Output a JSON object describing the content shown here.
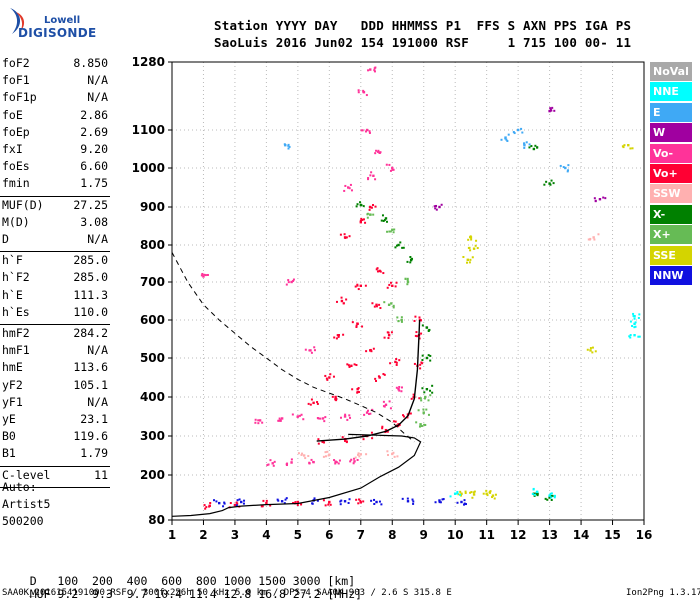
{
  "logo": {
    "line1": "Lowell",
    "line2": "DIGISONDE"
  },
  "header": {
    "line1": "Station YYYY DAY   DDD HHMMSS P1  FFS S AXN PPS IGA PS",
    "line2": "SaoLuis 2016 Jun02 154 191000 RSF     1 715 100 00- 11"
  },
  "panel": {
    "groups": [
      [
        [
          "foF2",
          "8.850"
        ],
        [
          "foF1",
          "N/A"
        ],
        [
          "foF1p",
          "N/A"
        ],
        [
          "foE",
          "2.86"
        ],
        [
          "foEp",
          "2.69"
        ],
        [
          "fxI",
          "9.20"
        ],
        [
          "foEs",
          "6.60"
        ],
        [
          "fmin",
          "1.75"
        ]
      ],
      [
        [
          "MUF(D)",
          "27.25"
        ],
        [
          "M(D)",
          "3.08"
        ],
        [
          "D",
          "N/A"
        ]
      ],
      [
        [
          "h`F",
          "285.0"
        ],
        [
          "h`F2",
          "285.0"
        ],
        [
          "h`E",
          "111.3"
        ],
        [
          "h`Es",
          "110.0"
        ]
      ],
      [
        [
          "hmF2",
          "284.2"
        ],
        [
          "hmF1",
          "N/A"
        ],
        [
          "hmE",
          "113.6"
        ],
        [
          "yF2",
          "105.1"
        ],
        [
          "yF1",
          "N/A"
        ],
        [
          "yE",
          "23.1"
        ],
        [
          "B0",
          "119.6"
        ],
        [
          "B1",
          "1.79"
        ]
      ],
      [
        [
          "C-level",
          "11"
        ]
      ]
    ],
    "auto": {
      "label": "Auto:",
      "artist": "Artist5",
      "code": "500200"
    }
  },
  "legend": [
    {
      "label": "NoVal",
      "bg": "#a9a9a9",
      "fg": "#ffffff"
    },
    {
      "label": "NNE",
      "bg": "#00ffff",
      "fg": "#ffffff"
    },
    {
      "label": "E",
      "bg": "#3fa9f5",
      "fg": "#ffffff"
    },
    {
      "label": "W",
      "bg": "#a000a0",
      "fg": "#ffffff"
    },
    {
      "label": "Vo-",
      "bg": "#ff3399",
      "fg": "#ffffff"
    },
    {
      "label": "Vo+",
      "bg": "#ff0033",
      "fg": "#ffffff"
    },
    {
      "label": "SSW",
      "bg": "#ffb0b0",
      "fg": "#ffffff"
    },
    {
      "label": "X-",
      "bg": "#008000",
      "fg": "#ffffff"
    },
    {
      "label": "X+",
      "bg": "#66bb55",
      "fg": "#ffffff"
    },
    {
      "label": "SSE",
      "bg": "#d4d400",
      "fg": "#ffffff"
    },
    {
      "label": "NNW",
      "bg": "#1010e0",
      "fg": "#ffffff"
    }
  ],
  "footer": {
    "d_label": "D   ",
    "d_values": "100  200  400  600  800 1000 1500 3000 [km]",
    "muf_label": "MUF ",
    "muf_values": "9.2  9.3  9.7 10.4 11.4 12.8 16.8 27.2 [MHz]",
    "file_info": "SAA0K_2016154191000.RSF / 300fx256h 50 kHz 5.0 km / DPS-4 SAA0K 903 / 2.6 S 315.8 E",
    "version": "Ion2Png 1.3.17"
  },
  "chart_data": {
    "type": "scatter",
    "x_ticks": [
      "1",
      "2",
      "3",
      "4",
      "5",
      "6",
      "7",
      "8",
      "9",
      "10",
      "11",
      "12",
      "13",
      "14",
      "15",
      "16"
    ],
    "y_ticks": [
      "80",
      "200",
      "300",
      "400",
      "500",
      "600",
      "700",
      "800",
      "900",
      "1000",
      "1100",
      "1280"
    ],
    "xlim": [
      1,
      16
    ],
    "ylim": [
      80,
      1280
    ],
    "y_scale": "piecewise",
    "grid": "dotted",
    "legend_position": "right",
    "series": [
      {
        "name": "Vo+",
        "color": "#ff0033",
        "points": [
          [
            5.8,
            285
          ],
          [
            6.5,
            292
          ],
          [
            7.2,
            300
          ],
          [
            7.8,
            315
          ],
          [
            8.2,
            330
          ],
          [
            8.5,
            355
          ],
          [
            8.7,
            400
          ],
          [
            8.8,
            480
          ],
          [
            8.85,
            560
          ],
          [
            8.88,
            600
          ],
          [
            3,
            120
          ],
          [
            4,
            125
          ],
          [
            5,
            128
          ],
          [
            6,
            128
          ],
          [
            7,
            127
          ],
          [
            2.2,
            118
          ],
          [
            6.5,
            820
          ],
          [
            7,
            860
          ],
          [
            7.3,
            900
          ],
          [
            6.4,
            650
          ],
          [
            7,
            690
          ],
          [
            7.6,
            730
          ],
          [
            6.3,
            560
          ],
          [
            6.9,
            590
          ],
          [
            7.5,
            640
          ],
          [
            8,
            690
          ],
          [
            6,
            450
          ],
          [
            6.7,
            480
          ],
          [
            7.3,
            520
          ],
          [
            7.9,
            560
          ],
          [
            5.5,
            385
          ],
          [
            6.2,
            400
          ],
          [
            6.9,
            420
          ],
          [
            7.6,
            450
          ],
          [
            8.1,
            490
          ]
        ]
      },
      {
        "name": "Vo-",
        "color": "#ff3399",
        "points": [
          [
            4.2,
            230
          ],
          [
            4.8,
            232
          ],
          [
            5.5,
            233
          ],
          [
            6.2,
            234
          ],
          [
            6.8,
            235
          ],
          [
            7.2,
            1100
          ],
          [
            7.1,
            1200
          ],
          [
            7.3,
            1260
          ],
          [
            7.6,
            1040
          ],
          [
            8,
            1000
          ],
          [
            6.6,
            950
          ],
          [
            7.4,
            980
          ],
          [
            5.8,
            345
          ],
          [
            6.5,
            350
          ],
          [
            7.2,
            360
          ],
          [
            7.8,
            380
          ],
          [
            8.2,
            420
          ],
          [
            5,
            350
          ],
          [
            4.5,
            345
          ],
          [
            3.8,
            340
          ],
          [
            5.4,
            520
          ],
          [
            4.8,
            700
          ],
          [
            2,
            715
          ]
        ]
      },
      {
        "name": "X-",
        "color": "#008000",
        "points": [
          [
            9.1,
            420
          ],
          [
            9.1,
            500
          ],
          [
            9.1,
            580
          ],
          [
            7,
            905
          ],
          [
            7.8,
            870
          ],
          [
            8.2,
            800
          ],
          [
            8.6,
            760
          ],
          [
            12.5,
            1050
          ],
          [
            13,
            960
          ],
          [
            13,
            140
          ],
          [
            12.5,
            150
          ]
        ]
      },
      {
        "name": "X+",
        "color": "#66bb55",
        "points": [
          [
            8.9,
            330
          ],
          [
            9,
            360
          ],
          [
            9.05,
            400
          ],
          [
            7.3,
            880
          ],
          [
            8,
            840
          ],
          [
            8.5,
            700
          ],
          [
            7.9,
            640
          ],
          [
            8.3,
            600
          ]
        ]
      },
      {
        "name": "SSE",
        "color": "#d4d400",
        "points": [
          [
            10.5,
            820
          ],
          [
            10.6,
            790
          ],
          [
            10.4,
            760
          ],
          [
            10.2,
            150
          ],
          [
            10.6,
            148
          ],
          [
            11,
            150
          ],
          [
            11.2,
            145
          ],
          [
            15.5,
            1060
          ],
          [
            14.3,
            520
          ]
        ]
      },
      {
        "name": "NNW",
        "color": "#1010e0",
        "points": [
          [
            2.5,
            125
          ],
          [
            3.2,
            128
          ],
          [
            4.5,
            130
          ],
          [
            5.5,
            132
          ],
          [
            6.5,
            130
          ],
          [
            7.5,
            128
          ],
          [
            8.5,
            130
          ],
          [
            9.5,
            132
          ],
          [
            10.2,
            128
          ]
        ]
      },
      {
        "name": "NNE",
        "color": "#00ffff",
        "points": [
          [
            15.7,
            610
          ],
          [
            15.7,
            590
          ],
          [
            15.7,
            560
          ],
          [
            12.6,
            155
          ],
          [
            13,
            145
          ],
          [
            10,
            150
          ]
        ]
      },
      {
        "name": "E",
        "color": "#3fa9f5",
        "points": [
          [
            12,
            1100
          ],
          [
            11.6,
            1080
          ],
          [
            12.2,
            1060
          ],
          [
            4.6,
            1060
          ],
          [
            13.5,
            1000
          ]
        ]
      },
      {
        "name": "W",
        "color": "#a000a0",
        "points": [
          [
            14.6,
            920
          ],
          [
            13,
            1150
          ],
          [
            9.5,
            900
          ]
        ]
      },
      {
        "name": "SSW",
        "color": "#ffb0b0",
        "points": [
          [
            5.2,
            250
          ],
          [
            6,
            252
          ],
          [
            7,
            253
          ],
          [
            8,
            254
          ],
          [
            14.4,
            820
          ]
        ]
      }
    ]
  }
}
